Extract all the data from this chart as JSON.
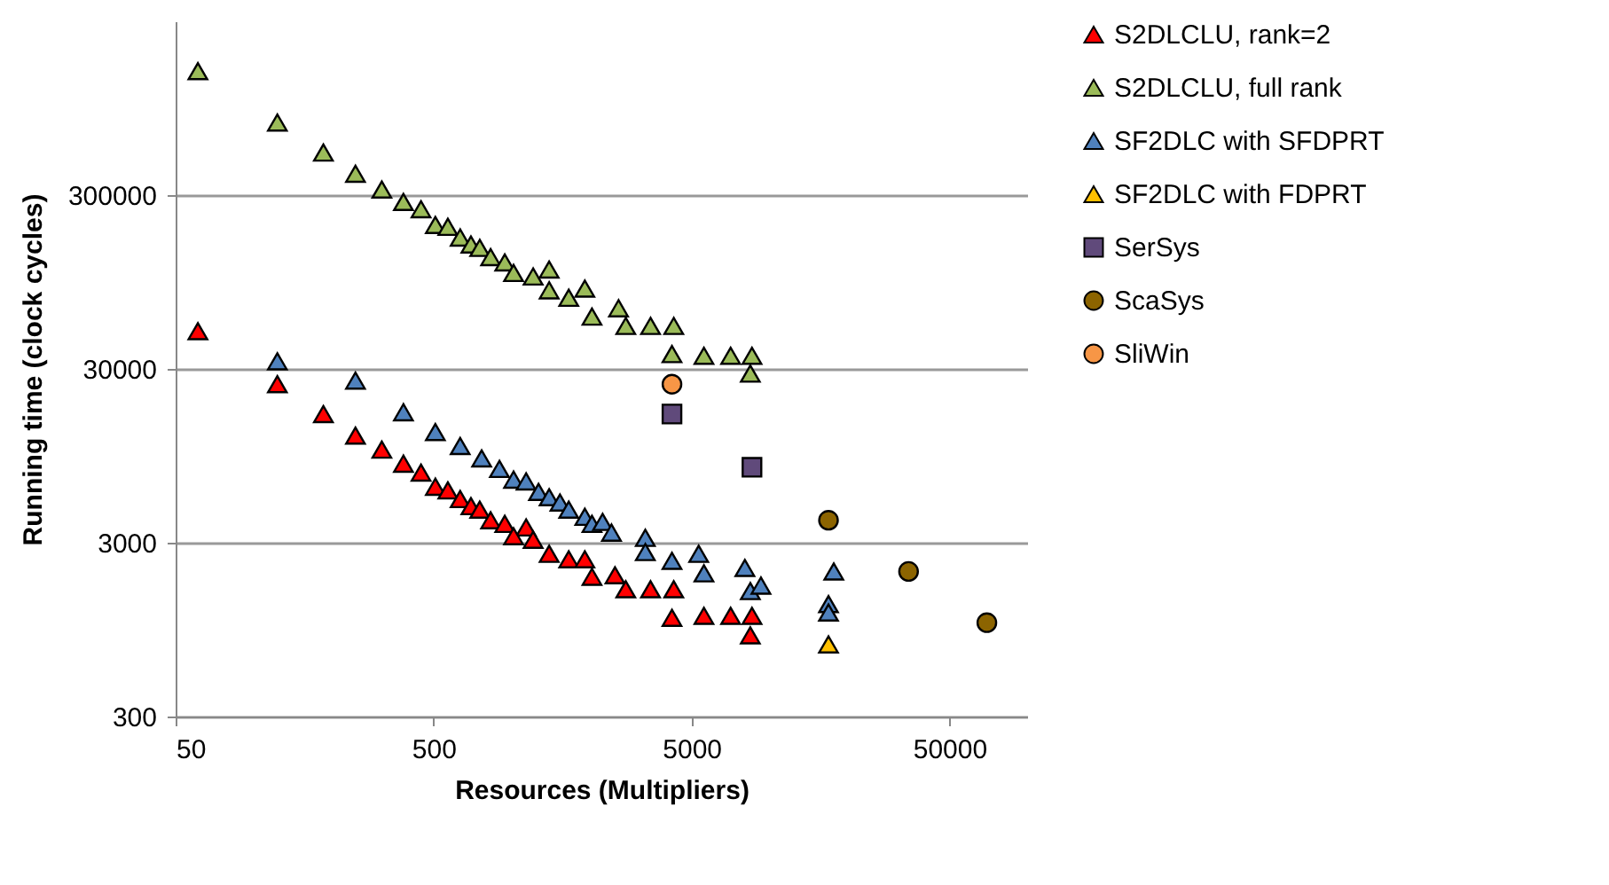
{
  "chart_data": {
    "type": "scatter",
    "xlabel": "Resources (Multipliers)",
    "ylabel": "Running time (clock cycles)",
    "log": "xy",
    "xlim": [
      50,
      100000
    ],
    "ylim": [
      300,
      3000000
    ],
    "xticks": [
      50,
      500,
      5000,
      50000
    ],
    "yticks": [
      300,
      3000,
      30000,
      300000
    ],
    "grid": "y",
    "legend": "right",
    "series": [
      {
        "name": "S2DLCLU, rank=2",
        "color": "#ff0000",
        "marker": "triangle",
        "x": [
          61,
          124,
          187,
          249,
          315,
          382,
          447,
          508,
          568,
          634,
          698,
          755,
          832,
          944,
          1142,
          1021,
          1216,
          1403,
          1671,
          1929,
          2525,
          2056,
          2780,
          3468,
          4266,
          4199,
          5585,
          7090,
          8576,
          8450
        ],
        "values": [
          49500,
          24500,
          16500,
          12400,
          10300,
          8550,
          7600,
          6300,
          6000,
          5350,
          4870,
          4650,
          4040,
          3850,
          3670,
          3270,
          3120,
          2590,
          2410,
          2410,
          1950,
          1910,
          1620,
          1620,
          1620,
          1110,
          1140,
          1140,
          1140,
          880
        ]
      },
      {
        "name": "S2DLCLU, full rank",
        "color": "#9bbb59",
        "marker": "triangle",
        "x": [
          61,
          124,
          187,
          249,
          315,
          382,
          447,
          508,
          568,
          634,
          698,
          755,
          832,
          944,
          1021,
          1216,
          1403,
          1671,
          1403,
          1929,
          2606,
          2056,
          2780,
          3468,
          4266,
          4199,
          5585,
          7090,
          8576,
          8450
        ],
        "values": [
          1550000,
          785000,
          527000,
          398000,
          323000,
          274000,
          249000,
          202000,
          197000,
          171000,
          156000,
          149000,
          132000,
          123000,
          107000,
          102000,
          85000,
          77000,
          112000,
          87000,
          67000,
          60000,
          53000,
          53000,
          53000,
          36500,
          35700,
          35700,
          35700,
          28200
        ]
      },
      {
        "name": "SF2DLC with SFDPRT",
        "color": "#4f81bd",
        "marker": "triangle",
        "x": [
          124,
          249,
          382,
          508,
          634,
          768,
          900,
          1021,
          1142,
          1276,
          1403,
          1545,
          1671,
          1929,
          2056,
          2260,
          2447,
          3310,
          3310,
          4199,
          5330,
          5585,
          8050,
          8450,
          9290,
          17800,
          16980,
          16980
        ],
        "values": [
          33200,
          25700,
          16900,
          13000,
          10800,
          9170,
          7970,
          6920,
          6760,
          5880,
          5480,
          5110,
          4650,
          4230,
          3850,
          3950,
          3430,
          3200,
          2650,
          2360,
          2590,
          2000,
          2150,
          1580,
          1700,
          2050,
          1330,
          1190
        ]
      },
      {
        "name": "SF2DLC with FDPRT",
        "color": "#ffc000",
        "marker": "triangle",
        "x": [
          16980
        ],
        "values": [
          780
        ]
      },
      {
        "name": "SerSys",
        "color": "#604a7b",
        "marker": "square",
        "x": [
          4199,
          8576
        ],
        "values": [
          16500,
          8150
        ]
      },
      {
        "name": "ScaSys",
        "color": "#8c6400",
        "marker": "circle",
        "x": [
          16980,
          34700,
          69800
        ],
        "values": [
          4040,
          2050,
          1040
        ]
      },
      {
        "name": "SliWin",
        "color": "#f79646",
        "marker": "circle",
        "x": [
          4199
        ],
        "values": [
          24500
        ]
      }
    ]
  }
}
